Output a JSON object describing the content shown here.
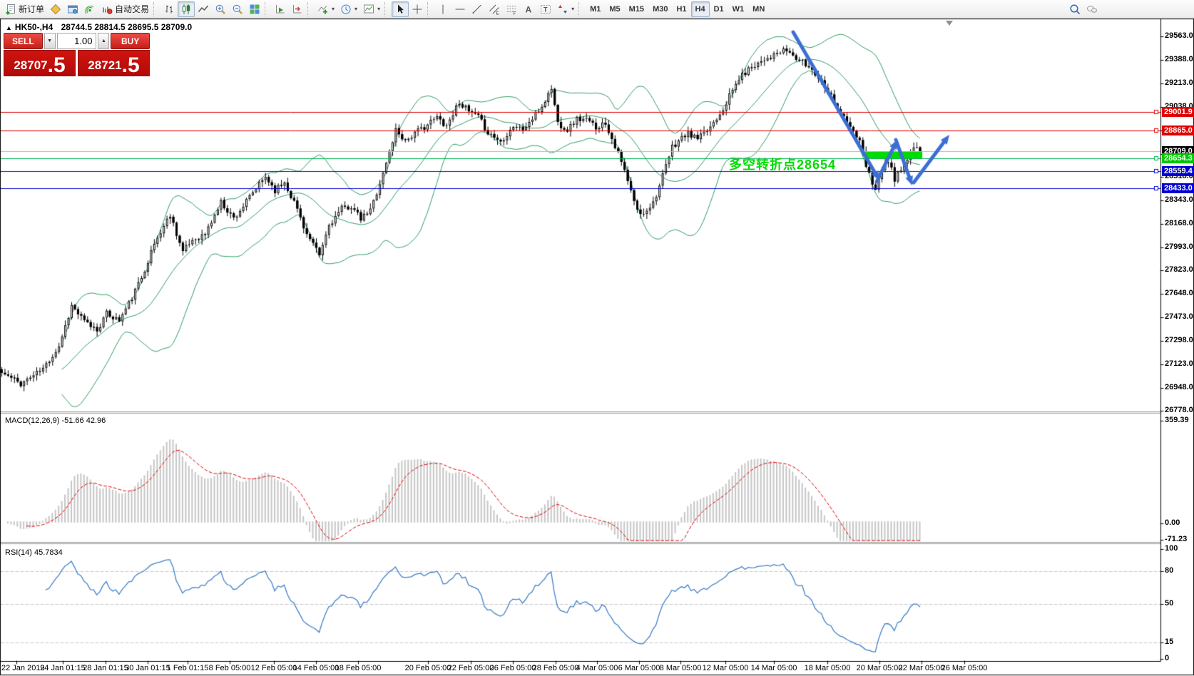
{
  "toolbar": {
    "new_order_label": "新订单",
    "autotrading_label": "自动交易",
    "buttons": [
      {
        "name": "new-order",
        "icon": "new-order",
        "label": "新订单"
      },
      {
        "name": "metaeditor",
        "icon": "metaeditor"
      },
      {
        "name": "terminal",
        "icon": "terminal"
      },
      {
        "name": "signals",
        "icon": "signals"
      },
      {
        "name": "autotrading",
        "icon": "autotrading",
        "label": "自动交易"
      },
      {
        "type": "sep"
      },
      {
        "name": "bar-chart",
        "icon": "bar-chart"
      },
      {
        "name": "candlestick",
        "icon": "candlestick",
        "active": true
      },
      {
        "name": "line-chart",
        "icon": "line-chart"
      },
      {
        "name": "zoom-in",
        "icon": "zoom-in"
      },
      {
        "name": "zoom-out",
        "icon": "zoom-out"
      },
      {
        "name": "tile-windows",
        "icon": "tile-windows"
      },
      {
        "type": "sep"
      },
      {
        "name": "auto-scroll",
        "icon": "auto-scroll"
      },
      {
        "name": "chart-shift",
        "icon": "chart-shift"
      },
      {
        "type": "sep"
      },
      {
        "name": "indicators",
        "icon": "indicators",
        "dropdown": true
      },
      {
        "name": "periods",
        "icon": "clock",
        "dropdown": true
      },
      {
        "name": "templates",
        "icon": "template",
        "dropdown": true
      },
      {
        "type": "sep"
      },
      {
        "name": "cursor",
        "icon": "cursor",
        "active": true
      },
      {
        "name": "crosshair",
        "icon": "crosshair"
      },
      {
        "type": "sep"
      },
      {
        "name": "vertical-line",
        "icon": "vline"
      },
      {
        "name": "horizontal-line",
        "icon": "hline"
      },
      {
        "name": "trendline",
        "icon": "trendline"
      },
      {
        "name": "equidistant-channel",
        "icon": "channel"
      },
      {
        "name": "fibonacci",
        "icon": "fibo"
      },
      {
        "name": "text",
        "icon": "text"
      },
      {
        "name": "text-label",
        "icon": "label"
      },
      {
        "name": "arrows",
        "icon": "arrows",
        "dropdown": true
      },
      {
        "type": "sep"
      }
    ],
    "timeframes": [
      "M1",
      "M5",
      "M15",
      "M30",
      "H1",
      "H4",
      "D1",
      "W1",
      "MN"
    ],
    "active_timeframe": "H4"
  },
  "chart": {
    "collapse_glyph": "▲",
    "title": "HK50-,H4",
    "ohlc": "28744.5 28814.5 28695.5 28709.0"
  },
  "trade_panel": {
    "sell": "SELL",
    "buy": "BUY",
    "volume": "1.00",
    "spin_down": "▼",
    "spin_up": "▲",
    "sell_big": "28707",
    "sell_pip": ".5",
    "buy_big": "28721",
    "buy_pip": ".5"
  },
  "annotation": {
    "text": "多空转折点28654",
    "color": "#00dd00"
  },
  "levels": [
    {
      "label": "29001.9",
      "price": 29001.9,
      "line_color": "#e00000",
      "badge_color": "#e00000",
      "anchor": true
    },
    {
      "label": "28865.0",
      "price": 28865.0,
      "line_color": "#e00000",
      "badge_color": "#e00000",
      "anchor": true
    },
    {
      "label": "28709.0",
      "price": 28709.0,
      "line_color": "#b4b4b4",
      "badge_color": "#000000",
      "anchor": false
    },
    {
      "label": "28654.3",
      "price": 28654.3,
      "line_color": "#00b050",
      "badge_color": "#00c800",
      "anchor": true
    },
    {
      "label": "28559.4",
      "price": 28559.4,
      "line_color": "#0000cf",
      "badge_color": "#0000cf",
      "anchor": true
    },
    {
      "label": "28433.0",
      "price": 28433.0,
      "line_color": "#0000cf",
      "badge_color": "#0000cf",
      "anchor": true
    }
  ],
  "y_ticks": [
    {
      "label": "29563.0",
      "price": 29563
    },
    {
      "label": "29388.0",
      "price": 29388
    },
    {
      "label": "29213.0",
      "price": 29213
    },
    {
      "label": "29038.0",
      "price": 29038
    },
    {
      "label": "28863.0",
      "price": 28863
    },
    {
      "label": "28688.0",
      "price": 28688
    },
    {
      "label": "28518.0",
      "price": 28518
    },
    {
      "label": "28343.0",
      "price": 28343
    },
    {
      "label": "28168.0",
      "price": 28168
    },
    {
      "label": "27993.0",
      "price": 27993
    },
    {
      "label": "27823.0",
      "price": 27823
    },
    {
      "label": "27648.0",
      "price": 27648
    },
    {
      "label": "27473.0",
      "price": 27473
    },
    {
      "label": "27298.0",
      "price": 27298
    },
    {
      "label": "27123.0",
      "price": 27123
    },
    {
      "label": "26948.0",
      "price": 26948
    },
    {
      "label": "26778.0",
      "price": 26778
    }
  ],
  "macd": {
    "label": "MACD(12,26,9) -51.66 42.96",
    "scale": [
      "359.39",
      "0.00",
      "-71.23"
    ]
  },
  "rsi": {
    "label": "RSI(14) 45.7834",
    "scale": [
      100,
      80,
      50,
      15,
      0
    ],
    "levels": [
      80,
      50,
      15
    ]
  },
  "time_axis": {
    "labels": [
      "22 Jan 2019",
      "24 Jan 01:15",
      "28 Jan 01:15",
      "30 Jan 01:15",
      "1 Feb 01:15",
      "8 Feb 05:00",
      "12 Feb 05:00",
      "14 Feb 05:00",
      "18 Feb 05:00",
      "20 Feb 05:00",
      "22 Feb 05:00",
      "26 Feb 05:00",
      "28 Feb 05:00",
      "4 Mar 05:00",
      "6 Mar 05:00",
      "8 Mar 05:00",
      "12 Mar 05:00",
      "14 Mar 05:00",
      "18 Mar 05:00",
      "20 Mar 05:00",
      "22 Mar 05:00",
      "26 Mar 05:00"
    ]
  },
  "chart_data": {
    "type": "candlestick",
    "symbol": "HK50",
    "period": "H4",
    "candle_count": 290,
    "last_close": 28709.0,
    "price_range": [
      26778,
      29563
    ],
    "keyframes": [
      [
        0,
        27060
      ],
      [
        6,
        26980
      ],
      [
        13,
        27090
      ],
      [
        18,
        27260
      ],
      [
        22,
        27560
      ],
      [
        26,
        27440
      ],
      [
        30,
        27380
      ],
      [
        33,
        27500
      ],
      [
        37,
        27450
      ],
      [
        41,
        27620
      ],
      [
        44,
        27770
      ],
      [
        48,
        28020
      ],
      [
        53,
        28240
      ],
      [
        57,
        27960
      ],
      [
        60,
        28050
      ],
      [
        64,
        28090
      ],
      [
        69,
        28330
      ],
      [
        73,
        28210
      ],
      [
        76,
        28300
      ],
      [
        80,
        28430
      ],
      [
        83,
        28520
      ],
      [
        86,
        28420
      ],
      [
        89,
        28480
      ],
      [
        93,
        28280
      ],
      [
        96,
        28090
      ],
      [
        100,
        27930
      ],
      [
        103,
        28160
      ],
      [
        107,
        28280
      ],
      [
        110,
        28300
      ],
      [
        113,
        28200
      ],
      [
        116,
        28270
      ],
      [
        120,
        28540
      ],
      [
        124,
        28870
      ],
      [
        127,
        28790
      ],
      [
        130,
        28840
      ],
      [
        134,
        28910
      ],
      [
        137,
        28960
      ],
      [
        140,
        28900
      ],
      [
        144,
        29080
      ],
      [
        147,
        29000
      ],
      [
        150,
        28960
      ],
      [
        153,
        28850
      ],
      [
        157,
        28780
      ],
      [
        161,
        28900
      ],
      [
        164,
        28870
      ],
      [
        167,
        28950
      ],
      [
        170,
        29040
      ],
      [
        173,
        29180
      ],
      [
        175,
        28920
      ],
      [
        178,
        28870
      ],
      [
        181,
        28950
      ],
      [
        184,
        28940
      ],
      [
        187,
        28890
      ],
      [
        190,
        28920
      ],
      [
        193,
        28750
      ],
      [
        196,
        28560
      ],
      [
        199,
        28330
      ],
      [
        201,
        28230
      ],
      [
        203,
        28280
      ],
      [
        205,
        28330
      ],
      [
        207,
        28450
      ],
      [
        211,
        28740
      ],
      [
        214,
        28810
      ],
      [
        216,
        28840
      ],
      [
        219,
        28800
      ],
      [
        222,
        28860
      ],
      [
        227,
        29030
      ],
      [
        232,
        29250
      ],
      [
        236,
        29340
      ],
      [
        240,
        29400
      ],
      [
        243,
        29420
      ],
      [
        247,
        29460
      ],
      [
        250,
        29400
      ],
      [
        253,
        29350
      ],
      [
        255,
        29320
      ],
      [
        259,
        29200
      ],
      [
        262,
        29080
      ],
      [
        264,
        28990
      ],
      [
        268,
        28850
      ],
      [
        270,
        28780
      ],
      [
        272,
        28600
      ],
      [
        274,
        28480
      ],
      [
        275,
        28440
      ],
      [
        277,
        28560
      ],
      [
        278,
        28640
      ],
      [
        280,
        28570
      ],
      [
        281,
        28500
      ],
      [
        283,
        28570
      ],
      [
        285,
        28640
      ],
      [
        286,
        28690
      ],
      [
        288,
        28740
      ],
      [
        289,
        28709
      ]
    ],
    "indicators": [
      {
        "name": "Bollinger Bands",
        "color": "#2f9e64"
      },
      {
        "name": "MACD",
        "params": "12,26,9",
        "values": [
          -51.66,
          42.96
        ]
      },
      {
        "name": "RSI",
        "params": "14",
        "value": 45.7834
      }
    ],
    "drawings": {
      "highlight_zone_price": 28654,
      "arrow_color": "#3c6fd4",
      "highlight_color": "#00dc00"
    }
  }
}
